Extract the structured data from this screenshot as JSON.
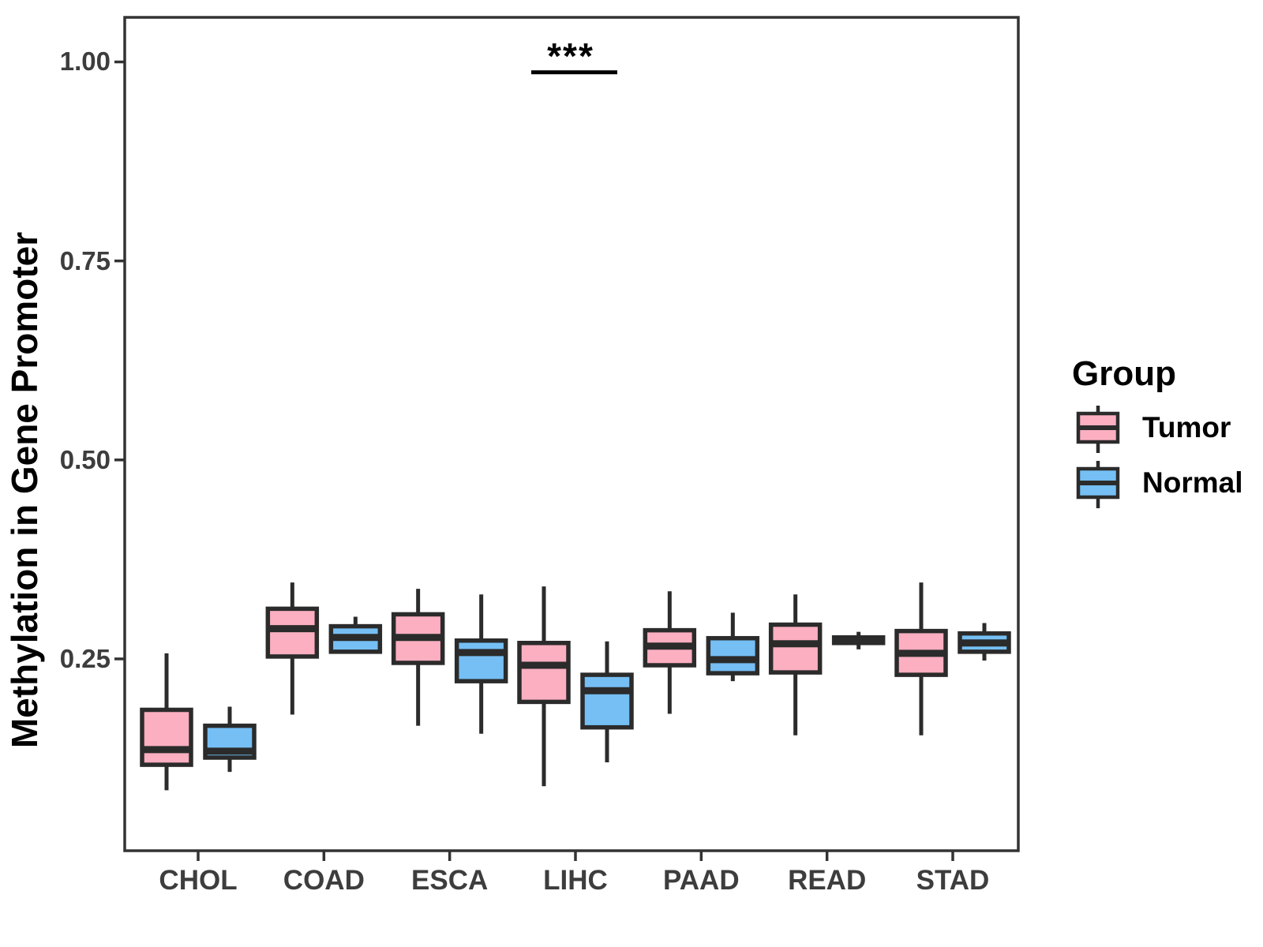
{
  "chart_data": {
    "type": "box",
    "title": "",
    "xlabel": "",
    "ylabel": "Methylation in Gene Promoter",
    "categories": [
      "CHOL",
      "COAD",
      "ESCA",
      "LIHC",
      "PAAD",
      "READ",
      "STAD"
    ],
    "yticks": [
      {
        "label": "0.25",
        "value": 0.25
      },
      {
        "label": "0.50",
        "value": 0.5
      },
      {
        "label": "0.75",
        "value": 0.75
      },
      {
        "label": "1.00",
        "value": 1.0
      }
    ],
    "ylim": [
      0.009,
      1.056
    ],
    "grid": false,
    "legend": {
      "title": "Group",
      "position": "right",
      "items": [
        {
          "label": "Tumor",
          "color": "#FBAFC1"
        },
        {
          "label": "Normal",
          "color": "#75BFF4"
        }
      ]
    },
    "series": [
      {
        "name": "Tumor",
        "color": "#FBAFC1",
        "boxes": [
          {
            "category": "CHOL",
            "whisker_low": 0.085,
            "q1": 0.117,
            "median": 0.136,
            "q3": 0.186,
            "whisker_high": 0.257
          },
          {
            "category": "COAD",
            "whisker_low": 0.18,
            "q1": 0.253,
            "median": 0.288,
            "q3": 0.313,
            "whisker_high": 0.346
          },
          {
            "category": "ESCA",
            "whisker_low": 0.166,
            "q1": 0.245,
            "median": 0.277,
            "q3": 0.306,
            "whisker_high": 0.338
          },
          {
            "category": "LIHC",
            "whisker_low": 0.09,
            "q1": 0.196,
            "median": 0.242,
            "q3": 0.27,
            "whisker_high": 0.341
          },
          {
            "category": "PAAD",
            "whisker_low": 0.181,
            "q1": 0.242,
            "median": 0.266,
            "q3": 0.286,
            "whisker_high": 0.335
          },
          {
            "category": "READ",
            "whisker_low": 0.154,
            "q1": 0.233,
            "median": 0.269,
            "q3": 0.293,
            "whisker_high": 0.331
          },
          {
            "category": "STAD",
            "whisker_low": 0.154,
            "q1": 0.23,
            "median": 0.257,
            "q3": 0.285,
            "whisker_high": 0.346
          }
        ]
      },
      {
        "name": "Normal",
        "color": "#75BFF4",
        "boxes": [
          {
            "category": "CHOL",
            "whisker_low": 0.108,
            "q1": 0.126,
            "median": 0.134,
            "q3": 0.166,
            "whisker_high": 0.19
          },
          {
            "category": "COAD",
            "whisker_low": 0.259,
            "q1": 0.259,
            "median": 0.277,
            "q3": 0.291,
            "whisker_high": 0.303
          },
          {
            "category": "ESCA",
            "whisker_low": 0.156,
            "q1": 0.222,
            "median": 0.258,
            "q3": 0.273,
            "whisker_high": 0.331
          },
          {
            "category": "LIHC",
            "whisker_low": 0.12,
            "q1": 0.164,
            "median": 0.21,
            "q3": 0.23,
            "whisker_high": 0.272
          },
          {
            "category": "PAAD",
            "whisker_low": 0.222,
            "q1": 0.232,
            "median": 0.249,
            "q3": 0.276,
            "whisker_high": 0.308
          },
          {
            "category": "READ",
            "whisker_low": 0.262,
            "q1": 0.27,
            "median": 0.273,
            "q3": 0.277,
            "whisker_high": 0.284
          },
          {
            "category": "STAD",
            "whisker_low": 0.248,
            "q1": 0.259,
            "median": 0.27,
            "q3": 0.282,
            "whisker_high": 0.295
          }
        ]
      }
    ],
    "annotation": {
      "text": "***",
      "category": "LIHC",
      "comparison": [
        "Tumor",
        "Normal"
      ],
      "bar_y": 0.987
    },
    "colors": {
      "box_border": "#2B2B2B",
      "axis": "#333333",
      "tick_text": "#3D3D3D",
      "text": "#000000",
      "background": "#FFFFFF"
    }
  }
}
